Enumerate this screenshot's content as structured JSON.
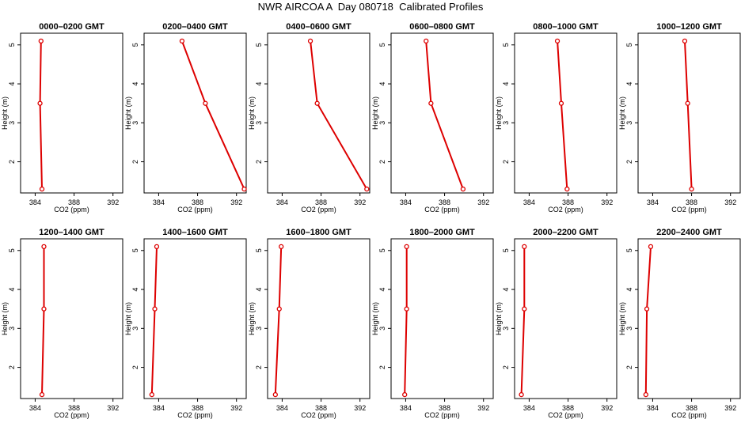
{
  "title": "NWR AIRCOA A  Day 080718  Calibrated Profiles",
  "colors": {
    "line": "#dd0000",
    "axis": "#000000"
  },
  "chart_data": [
    {
      "type": "line",
      "title": "0000–0200 GMT",
      "xlabel": "CO2 (ppm)",
      "ylabel": "Height (m)",
      "xlim": [
        382.5,
        393.0
      ],
      "ylim": [
        1.2,
        5.3
      ],
      "xticks": [
        384,
        388,
        392
      ],
      "yticks": [
        2,
        3,
        4,
        5
      ],
      "grid": false,
      "series": [
        {
          "x": [
            384.7,
            384.5,
            384.6
          ],
          "y": [
            1.3,
            3.5,
            5.1
          ]
        }
      ]
    },
    {
      "type": "line",
      "title": "0200–0400 GMT",
      "xlabel": "CO2 (ppm)",
      "ylabel": "Height (m)",
      "xlim": [
        382.5,
        393.0
      ],
      "ylim": [
        1.2,
        5.3
      ],
      "xticks": [
        384,
        388,
        392
      ],
      "yticks": [
        2,
        3,
        4,
        5
      ],
      "grid": false,
      "series": [
        {
          "x": [
            392.8,
            388.8,
            386.4
          ],
          "y": [
            1.3,
            3.5,
            5.1
          ]
        }
      ]
    },
    {
      "type": "line",
      "title": "0400–0600 GMT",
      "xlabel": "CO2 (ppm)",
      "ylabel": "Height (m)",
      "xlim": [
        382.5,
        393.0
      ],
      "ylim": [
        1.2,
        5.3
      ],
      "xticks": [
        384,
        388,
        392
      ],
      "yticks": [
        2,
        3,
        4,
        5
      ],
      "grid": false,
      "series": [
        {
          "x": [
            392.7,
            387.6,
            386.9
          ],
          "y": [
            1.3,
            3.5,
            5.1
          ]
        }
      ]
    },
    {
      "type": "line",
      "title": "0600–0800 GMT",
      "xlabel": "CO2 (ppm)",
      "ylabel": "Height (m)",
      "xlim": [
        382.5,
        393.0
      ],
      "ylim": [
        1.2,
        5.3
      ],
      "xticks": [
        384,
        388,
        392
      ],
      "yticks": [
        2,
        3,
        4,
        5
      ],
      "grid": false,
      "series": [
        {
          "x": [
            389.9,
            386.6,
            386.1
          ],
          "y": [
            1.3,
            3.5,
            5.1
          ]
        }
      ]
    },
    {
      "type": "line",
      "title": "0800–1000 GMT",
      "xlabel": "CO2 (ppm)",
      "ylabel": "Height (m)",
      "xlim": [
        382.5,
        393.0
      ],
      "ylim": [
        1.2,
        5.3
      ],
      "xticks": [
        384,
        388,
        392
      ],
      "yticks": [
        2,
        3,
        4,
        5
      ],
      "grid": false,
      "series": [
        {
          "x": [
            387.9,
            387.3,
            386.9
          ],
          "y": [
            1.3,
            3.5,
            5.1
          ]
        }
      ]
    },
    {
      "type": "line",
      "title": "1000–1200 GMT",
      "xlabel": "CO2 (ppm)",
      "ylabel": "Height (m)",
      "xlim": [
        382.5,
        393.0
      ],
      "ylim": [
        1.2,
        5.3
      ],
      "xticks": [
        384,
        388,
        392
      ],
      "yticks": [
        2,
        3,
        4,
        5
      ],
      "grid": false,
      "series": [
        {
          "x": [
            388.0,
            387.6,
            387.3
          ],
          "y": [
            1.3,
            3.5,
            5.1
          ]
        }
      ]
    },
    {
      "type": "line",
      "title": "1200–1400 GMT",
      "xlabel": "CO2 (ppm)",
      "ylabel": "Height (m)",
      "xlim": [
        382.5,
        393.0
      ],
      "ylim": [
        1.2,
        5.3
      ],
      "xticks": [
        384,
        388,
        392
      ],
      "yticks": [
        2,
        3,
        4,
        5
      ],
      "grid": false,
      "series": [
        {
          "x": [
            384.7,
            384.9,
            384.9
          ],
          "y": [
            1.3,
            3.5,
            5.1
          ]
        }
      ]
    },
    {
      "type": "line",
      "title": "1400–1600 GMT",
      "xlabel": "CO2 (ppm)",
      "ylabel": "Height (m)",
      "xlim": [
        382.5,
        393.0
      ],
      "ylim": [
        1.2,
        5.3
      ],
      "xticks": [
        384,
        388,
        392
      ],
      "yticks": [
        2,
        3,
        4,
        5
      ],
      "grid": false,
      "series": [
        {
          "x": [
            383.3,
            383.6,
            383.8
          ],
          "y": [
            1.3,
            3.5,
            5.1
          ]
        }
      ]
    },
    {
      "type": "line",
      "title": "1600–1800 GMT",
      "xlabel": "CO2 (ppm)",
      "ylabel": "Height (m)",
      "xlim": [
        382.5,
        393.0
      ],
      "ylim": [
        1.2,
        5.3
      ],
      "xticks": [
        384,
        388,
        392
      ],
      "yticks": [
        2,
        3,
        4,
        5
      ],
      "grid": false,
      "series": [
        {
          "x": [
            383.3,
            383.7,
            383.9
          ],
          "y": [
            1.3,
            3.5,
            5.1
          ]
        }
      ]
    },
    {
      "type": "line",
      "title": "1800–2000 GMT",
      "xlabel": "CO2 (ppm)",
      "ylabel": "Height (m)",
      "xlim": [
        382.5,
        393.0
      ],
      "ylim": [
        1.2,
        5.3
      ],
      "xticks": [
        384,
        388,
        392
      ],
      "yticks": [
        2,
        3,
        4,
        5
      ],
      "grid": false,
      "series": [
        {
          "x": [
            383.9,
            384.1,
            384.1
          ],
          "y": [
            1.3,
            3.5,
            5.1
          ]
        }
      ]
    },
    {
      "type": "line",
      "title": "2000–2200 GMT",
      "xlabel": "CO2 (ppm)",
      "ylabel": "Height (m)",
      "xlim": [
        382.5,
        393.0
      ],
      "ylim": [
        1.2,
        5.3
      ],
      "xticks": [
        384,
        388,
        392
      ],
      "yticks": [
        2,
        3,
        4,
        5
      ],
      "grid": false,
      "series": [
        {
          "x": [
            383.2,
            383.5,
            383.5
          ],
          "y": [
            1.3,
            3.5,
            5.1
          ]
        }
      ]
    },
    {
      "type": "line",
      "title": "2200–2400 GMT",
      "xlabel": "CO2 (ppm)",
      "ylabel": "Height (m)",
      "xlim": [
        382.5,
        393.0
      ],
      "ylim": [
        1.2,
        5.3
      ],
      "xticks": [
        384,
        388,
        392
      ],
      "yticks": [
        2,
        3,
        4,
        5
      ],
      "grid": false,
      "series": [
        {
          "x": [
            383.3,
            383.4,
            383.8
          ],
          "y": [
            1.3,
            3.5,
            5.1
          ]
        }
      ]
    }
  ]
}
